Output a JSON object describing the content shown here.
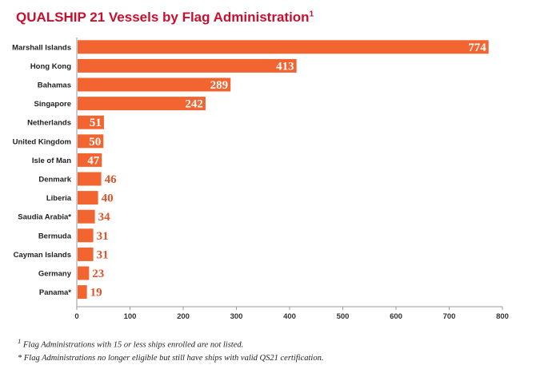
{
  "colors": {
    "title": "#c8102e",
    "bar": "#f26430",
    "value_inside": "#ffffff",
    "value_outside": "#e0542a",
    "axis": "#9a9a9a"
  },
  "chart_data": {
    "type": "bar",
    "orientation": "horizontal",
    "title": "QUALSHIP 21 Vessels by Flag Administration",
    "title_note": "1",
    "categories": [
      "Marshall Islands",
      "Hong Kong",
      "Bahamas",
      "Singapore",
      "Netherlands",
      "United Kingdom",
      "Isle of Man",
      "Denmark",
      "Liberia",
      "Saudia Arabia*",
      "Bermuda",
      "Cayman Islands",
      "Germany",
      "Panama*"
    ],
    "values": [
      774,
      413,
      289,
      242,
      51,
      50,
      47,
      46,
      40,
      34,
      31,
      31,
      23,
      19
    ],
    "xlim": [
      0,
      800
    ],
    "xticks": [
      0,
      100,
      200,
      300,
      400,
      500,
      600,
      700,
      800
    ],
    "grid": false,
    "legend": "none",
    "xlabel": "",
    "ylabel": ""
  },
  "footnotes": {
    "note1_mark": "1",
    "note1_text": " Flag Administrations with 15 or less ships enrolled are not listed.",
    "note2": "* Flag Administrations no longer eligible but still have ships with valid QS21 certification."
  }
}
